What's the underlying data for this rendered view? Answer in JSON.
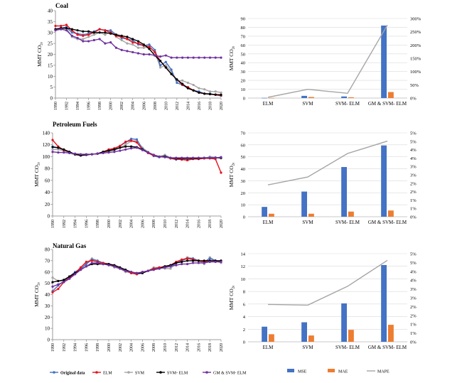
{
  "colors": {
    "original": "#4472c4",
    "elm": "#e8111a",
    "svm": "#a5a5a5",
    "svm_elm": "#000000",
    "gm_svm_elm": "#7030a0",
    "mse": "#4472c4",
    "mae": "#ed7d31",
    "mape": "#a5a5a5",
    "grid": "#d9d9d9",
    "axis": "#7f7f7f"
  },
  "line_legend": [
    {
      "key": "original",
      "label": "Original data"
    },
    {
      "key": "elm",
      "label": "ELM"
    },
    {
      "key": "svm",
      "label": "SVM"
    },
    {
      "key": "svm_elm",
      "label": "SVM- ELM"
    },
    {
      "key": "gm_svm_elm",
      "label": "GM & SVM- ELM"
    }
  ],
  "bar_legend": [
    {
      "key": "mse",
      "label": "MSE"
    },
    {
      "key": "mae",
      "label": "MAE"
    },
    {
      "key": "mape",
      "label": "MAPE"
    }
  ],
  "chart_data": [
    {
      "type": "line",
      "title": "Coal",
      "ylabel": "MMT CO2e",
      "ylim": [
        0,
        40
      ],
      "yticks": [
        0,
        5,
        10,
        15,
        20,
        25,
        30,
        35,
        40
      ],
      "xticks": [
        "1990",
        "1992",
        "1994",
        "1996",
        "1998",
        "2000",
        "2002",
        "2004",
        "2006",
        "2008",
        "2010",
        "2012",
        "2014",
        "2016",
        "2018",
        "2020"
      ],
      "x": [
        1990,
        1991,
        1992,
        1993,
        1994,
        1995,
        1996,
        1997,
        1998,
        1999,
        2000,
        2001,
        2002,
        2003,
        2004,
        2005,
        2006,
        2007,
        2008,
        2009,
        2010,
        2011,
        2012,
        2013,
        2014,
        2015,
        2016,
        2017,
        2018,
        2019,
        2020
      ],
      "series": [
        {
          "key": "svm",
          "values": [
            31,
            31.5,
            32,
            28,
            27,
            27,
            28,
            29,
            30,
            29,
            30.5,
            28,
            26.5,
            25,
            24.5,
            23,
            23,
            23.5,
            21,
            14,
            15,
            12,
            8,
            8,
            7,
            6,
            4.5,
            4,
            3,
            3,
            2.5
          ]
        },
        {
          "key": "original",
          "values": [
            31.5,
            32,
            32.5,
            30,
            29.5,
            29,
            29.5,
            30.5,
            31.5,
            31,
            31,
            29,
            27.5,
            27,
            26.5,
            24.5,
            24,
            24.5,
            22,
            15,
            16.5,
            13,
            7,
            6,
            4.5,
            3.5,
            3,
            2,
            2,
            1.5,
            1
          ]
        },
        {
          "key": "elm",
          "values": [
            33,
            33,
            33.5,
            31,
            29,
            28.5,
            29,
            30,
            31.5,
            31,
            30,
            28.5,
            28,
            27,
            25.5,
            25,
            24,
            23.5,
            21,
            17,
            14,
            11,
            8.5,
            6,
            5,
            3.5,
            2.5,
            2,
            1.8,
            1.5,
            1.2
          ]
        },
        {
          "key": "svm_elm",
          "values": [
            31.5,
            32,
            32,
            31.5,
            31,
            30.5,
            30.5,
            30,
            30,
            30,
            29.5,
            29,
            28.5,
            28,
            27,
            26,
            24.5,
            22.5,
            19.5,
            17,
            14,
            11,
            8.5,
            6.5,
            4.5,
            3.5,
            2.5,
            2,
            1.8,
            1.6,
            1.5
          ]
        },
        {
          "key": "gm_svm_elm",
          "values": [
            31,
            31.5,
            31,
            28.5,
            27.5,
            26,
            26,
            26.5,
            27,
            25,
            25.5,
            23,
            22,
            21.5,
            21,
            20.5,
            20,
            20,
            19.5,
            19,
            19.5,
            18.5,
            18.5,
            18.5,
            18.5,
            18.5,
            18.5,
            18.5,
            18.5,
            18.5,
            18.5
          ]
        }
      ]
    },
    {
      "type": "line",
      "title": "Petroleum Fuels",
      "ylabel": "MMT CO2e",
      "ylim": [
        0,
        140
      ],
      "yticks": [
        0,
        20,
        40,
        60,
        80,
        100,
        120,
        140
      ],
      "xticks": [
        "1990",
        "1992",
        "1994",
        "1996",
        "1998",
        "2000",
        "2002",
        "2004",
        "2006",
        "2008",
        "2010",
        "2012",
        "2014",
        "2016",
        "2018",
        "2020"
      ],
      "x": [
        1990,
        1991,
        1992,
        1993,
        1994,
        1995,
        1996,
        1997,
        1998,
        1999,
        2000,
        2001,
        2002,
        2003,
        2004,
        2005,
        2006,
        2007,
        2008,
        2009,
        2010,
        2011,
        2012,
        2013,
        2014,
        2015,
        2016,
        2017,
        2018,
        2019,
        2020
      ],
      "series": [
        {
          "key": "svm",
          "values": [
            112,
            112,
            110,
            106,
            103,
            102,
            103,
            104,
            105,
            107,
            109,
            111,
            115,
            120,
            126,
            127,
            115,
            108,
            102,
            100,
            103,
            98,
            96,
            96,
            95,
            97,
            98,
            97,
            100,
            99,
            97
          ]
        },
        {
          "key": "original",
          "values": [
            117,
            115,
            111,
            107,
            104,
            102,
            103,
            104,
            105,
            108,
            111,
            113,
            118,
            124,
            130,
            129,
            113,
            107,
            101,
            99,
            101,
            97,
            95,
            96,
            94,
            97,
            97,
            97,
            98,
            98,
            99
          ]
        },
        {
          "key": "elm",
          "values": [
            128,
            117,
            111,
            108,
            104,
            102,
            103,
            104,
            105,
            108,
            112,
            114,
            118,
            125,
            127,
            124,
            112,
            106,
            102,
            100,
            100,
            97,
            96,
            95,
            94,
            96,
            96,
            97,
            97,
            96,
            73
          ]
        },
        {
          "key": "svm_elm",
          "values": [
            116,
            115,
            112,
            108,
            104,
            102,
            103,
            104,
            105,
            108,
            110,
            112,
            115,
            117,
            117,
            116,
            112,
            107,
            103,
            100,
            100,
            98,
            97,
            97,
            97,
            97,
            97,
            98,
            98,
            98,
            98
          ]
        },
        {
          "key": "gm_svm_elm",
          "values": [
            108,
            107,
            107,
            106,
            105,
            104,
            104,
            104,
            105,
            106,
            107,
            108,
            110,
            112,
            114,
            115,
            111,
            107,
            103,
            100,
            99,
            98,
            98,
            98,
            98,
            98,
            98,
            98,
            98,
            98,
            99
          ]
        }
      ]
    },
    {
      "type": "line",
      "title": "Natural Gas",
      "ylabel": "MMT CO2e",
      "ylim": [
        0,
        80
      ],
      "yticks": [
        0,
        10,
        20,
        30,
        40,
        50,
        60,
        70,
        80
      ],
      "xticks": [
        "1990",
        "1992",
        "1994",
        "1996",
        "1998",
        "2000",
        "2002",
        "2004",
        "2006",
        "2008",
        "2010",
        "2012",
        "2014",
        "2016",
        "2018",
        "2020"
      ],
      "x": [
        1990,
        1991,
        1992,
        1993,
        1994,
        1995,
        1996,
        1997,
        1998,
        1999,
        2000,
        2001,
        2002,
        2003,
        2004,
        2005,
        2006,
        2007,
        2008,
        2009,
        2010,
        2011,
        2012,
        2013,
        2014,
        2015,
        2016,
        2017,
        2018,
        2019,
        2020
      ],
      "series": [
        {
          "key": "svm",
          "values": [
            55,
            52,
            52,
            55,
            58,
            62,
            68,
            72,
            70,
            68,
            67,
            64,
            63,
            60,
            60,
            59,
            60,
            61,
            64,
            64,
            63,
            63,
            68,
            70,
            73,
            72,
            70,
            67,
            73,
            70,
            68
          ]
        },
        {
          "key": "original",
          "values": [
            43,
            48,
            52,
            56,
            60,
            63,
            67,
            71,
            70,
            68,
            67,
            65,
            63,
            61,
            59,
            58,
            59,
            61,
            63,
            63,
            64,
            65,
            68,
            70,
            72,
            72,
            70,
            69,
            72,
            70,
            70
          ]
        },
        {
          "key": "elm",
          "values": [
            42,
            45,
            51,
            55,
            59,
            64,
            69,
            70,
            69,
            68,
            67,
            65,
            63,
            61,
            59,
            58,
            60,
            61,
            63,
            64,
            65,
            66,
            69,
            71,
            72,
            71,
            70,
            69,
            70,
            70,
            69
          ]
        },
        {
          "key": "svm_elm",
          "values": [
            51,
            52,
            53,
            56,
            59,
            62,
            65,
            67,
            67,
            67,
            67,
            66,
            64,
            62,
            60,
            59,
            59,
            61,
            62,
            63,
            65,
            66,
            68,
            69,
            70,
            70,
            70,
            70,
            70,
            70,
            70
          ]
        },
        {
          "key": "gm_svm_elm",
          "values": [
            47,
            49,
            51,
            54,
            58,
            62,
            65,
            68,
            68,
            67,
            66,
            65,
            63,
            61,
            60,
            59,
            60,
            61,
            62,
            63,
            64,
            65,
            66,
            67,
            67,
            68,
            68,
            68,
            69,
            69,
            69
          ]
        }
      ]
    },
    {
      "type": "bar",
      "categories": [
        "ELM",
        "SVM",
        "SVM- ELM",
        "GM & SVM- ELM"
      ],
      "ylim": [
        0,
        90
      ],
      "yticks": [
        0,
        10,
        20,
        30,
        40,
        50,
        60,
        70,
        80,
        90
      ],
      "y2lim": [
        0,
        3
      ],
      "y2ticks": [
        "0%",
        "50%",
        "100%",
        "150%",
        "200%",
        "250%",
        "300%"
      ],
      "series": [
        {
          "key": "mse",
          "values": [
            0.2,
            2.5,
            1.8,
            82
          ]
        },
        {
          "key": "mae",
          "values": [
            0.1,
            1.2,
            0.9,
            6.8
          ]
        }
      ],
      "line": {
        "key": "mape",
        "values": [
          0.03,
          0.33,
          0.18,
          2.75
        ]
      }
    },
    {
      "type": "bar",
      "categories": [
        "ELM",
        "SVM",
        "SVM- ELM",
        "GM & SVM- ELM"
      ],
      "ylim": [
        0,
        70
      ],
      "yticks": [
        0,
        10,
        20,
        30,
        40,
        50,
        60,
        70
      ],
      "y2lim": [
        0,
        0.05
      ],
      "y2ticks": [
        "0%",
        "1%",
        "1%",
        "2%",
        "2%",
        "3%",
        "3%",
        "4%",
        "4%",
        "5%",
        "5%"
      ],
      "series": [
        {
          "key": "mse",
          "values": [
            8.2,
            21,
            41.5,
            59.5
          ]
        },
        {
          "key": "mae",
          "values": [
            2.5,
            2.5,
            4.3,
            5.2
          ]
        }
      ],
      "line": {
        "key": "mape",
        "values": [
          0.019,
          0.0237,
          0.0377,
          0.0451
        ]
      }
    },
    {
      "type": "bar",
      "categories": [
        "ELM",
        "SVM",
        "SVM- ELM",
        "GM & SVM- ELM"
      ],
      "ylim": [
        0,
        14
      ],
      "yticks": [
        0,
        2,
        4,
        6,
        8,
        10,
        12,
        14
      ],
      "y2lim": [
        0,
        0.05
      ],
      "y2ticks": [
        "0%",
        "1%",
        "1%",
        "2%",
        "2%",
        "3%",
        "3%",
        "4%",
        "4%",
        "5%",
        "5%"
      ],
      "series": [
        {
          "key": "mse",
          "values": [
            2.4,
            3.1,
            6.1,
            12.2
          ]
        },
        {
          "key": "mae",
          "values": [
            1.2,
            1.0,
            1.9,
            2.7
          ]
        }
      ],
      "line": {
        "key": "mape",
        "values": [
          0.0212,
          0.0208,
          0.0315,
          0.0462
        ]
      }
    }
  ]
}
